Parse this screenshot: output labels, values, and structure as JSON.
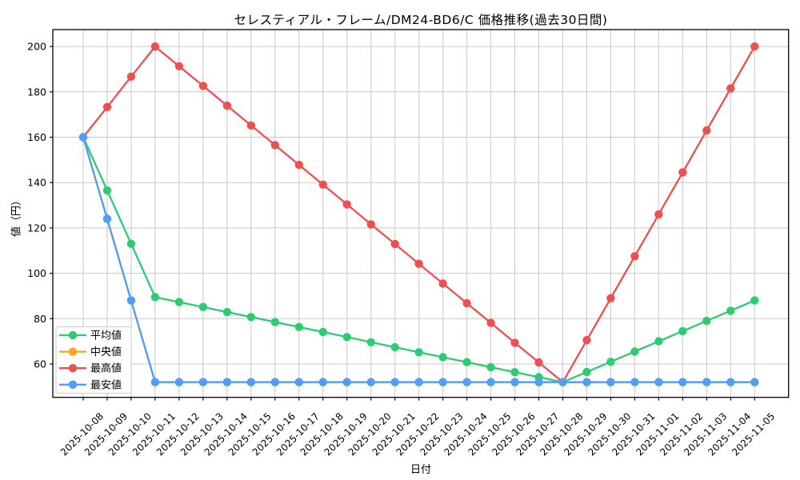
{
  "chart_data": {
    "type": "line",
    "title": "セレスティアル・フレーム/DM24-BD6/C 価格推移(過去30日間)",
    "xlabel": "日付",
    "ylabel": "値（円）",
    "grid": true,
    "legend_position": "lower left",
    "marker": "circle",
    "x_label_rotation": 45,
    "ylim": [
      45,
      207.5
    ],
    "y_ticks": [
      60,
      80,
      100,
      120,
      140,
      160,
      180,
      200
    ],
    "categories": [
      "2025-10-08",
      "2025-10-09",
      "2025-10-10",
      "2025-10-11",
      "2025-10-12",
      "2025-10-13",
      "2025-10-14",
      "2025-10-15",
      "2025-10-16",
      "2025-10-17",
      "2025-10-18",
      "2025-10-19",
      "2025-10-20",
      "2025-10-21",
      "2025-10-22",
      "2025-10-23",
      "2025-10-24",
      "2025-10-25",
      "2025-10-26",
      "2025-10-27",
      "2025-10-28",
      "2025-10-29",
      "2025-10-30",
      "2025-10-31",
      "2025-11-01",
      "2025-11-02",
      "2025-11-03",
      "2025-11-04",
      "2025-11-05"
    ],
    "series": [
      {
        "key": "average",
        "name": "平均値",
        "color": "#2ECC71",
        "values": [
          160,
          136.5,
          113,
          89.5,
          87.3,
          85.1,
          82.9,
          80.7,
          78.5,
          76.3,
          74.1,
          71.9,
          69.6,
          67.4,
          65.2,
          63.0,
          60.8,
          58.6,
          56.4,
          54.2,
          52,
          56.5,
          61,
          65.5,
          70,
          74.5,
          79,
          83.5,
          88
        ]
      },
      {
        "key": "median",
        "name": "中央値",
        "color": "#F5A623",
        "values": [
          160,
          124,
          88,
          52,
          52,
          52,
          52,
          52,
          52,
          52,
          52,
          52,
          52,
          52,
          52,
          52,
          52,
          52,
          52,
          52,
          52,
          52,
          52,
          52,
          52,
          52,
          52,
          52,
          52
        ]
      },
      {
        "key": "max",
        "name": "最高値",
        "color": "#F04F4F",
        "values": [
          160,
          173.3,
          186.7,
          200,
          191.3,
          182.6,
          173.9,
          165.2,
          156.5,
          147.8,
          139.1,
          130.4,
          121.6,
          112.9,
          104.2,
          95.5,
          86.8,
          78.1,
          69.4,
          60.7,
          52,
          70.5,
          89,
          107.5,
          126,
          144.5,
          163,
          181.5,
          200
        ]
      },
      {
        "key": "min",
        "name": "最安値",
        "color": "#4E9EFA",
        "values": [
          160,
          124,
          88,
          52,
          52,
          52,
          52,
          52,
          52,
          52,
          52,
          52,
          52,
          52,
          52,
          52,
          52,
          52,
          52,
          52,
          52,
          52,
          52,
          52,
          52,
          52,
          52,
          52,
          52
        ]
      }
    ]
  }
}
